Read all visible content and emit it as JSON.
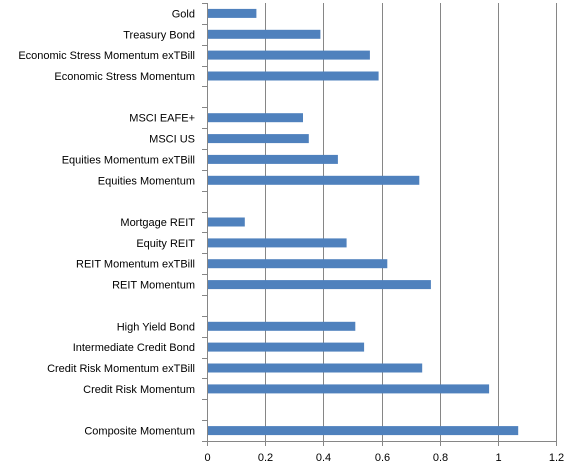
{
  "chart_data": {
    "type": "bar",
    "orientation": "horizontal",
    "title": "",
    "xlabel": "",
    "ylabel": "",
    "xlim": [
      0,
      1.2
    ],
    "x_ticks": [
      0,
      0.2,
      0.4,
      0.6,
      0.8,
      1,
      1.2
    ],
    "x_tick_labels": [
      "0",
      "0.2",
      "0.4",
      "0.6",
      "0.8",
      "1",
      "1.2"
    ],
    "grid": "vertical major gridlines",
    "legend": "none",
    "bar_color": "#4F81BD",
    "gridline_color": "#868686",
    "categories": [
      "Gold",
      "Treasury Bond",
      "Economic Stress Momentum exTBill",
      "Economic Stress Momentum",
      "",
      "MSCI EAFE+",
      "MSCI US",
      "Equities Momentum exTBill",
      "Equities Momentum",
      "",
      "Mortgage REIT",
      "Equity REIT",
      "REIT Momentum exTBill",
      "REIT Momentum",
      "",
      "High Yield Bond",
      "Intermediate Credit Bond",
      "Credit Risk Momentum exTBill",
      "Credit Risk Momentum",
      "",
      "Composite Momentum"
    ],
    "values": [
      0.17,
      0.39,
      0.56,
      0.59,
      null,
      0.33,
      0.35,
      0.45,
      0.73,
      null,
      0.13,
      0.48,
      0.62,
      0.77,
      null,
      0.51,
      0.54,
      0.74,
      0.97,
      null,
      1.07
    ]
  }
}
